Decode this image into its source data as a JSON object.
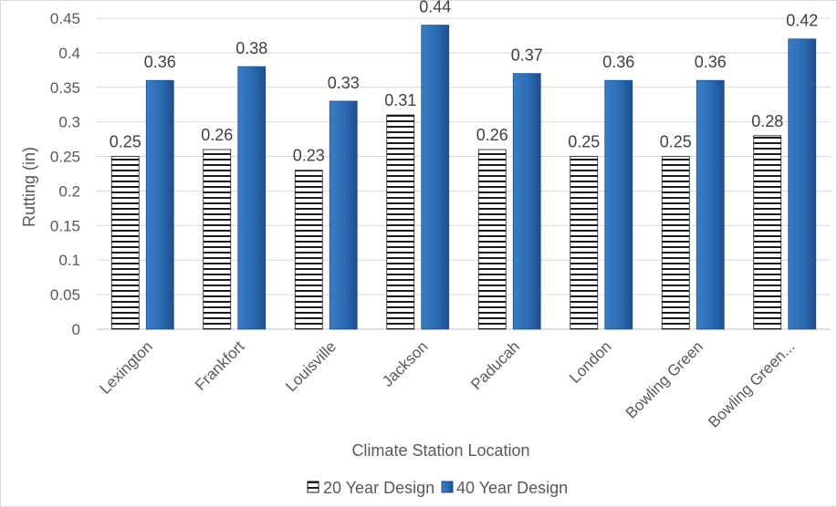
{
  "chart_data": {
    "type": "bar",
    "title": "",
    "xlabel": "Climate Station Location",
    "ylabel": "Rutting (in)",
    "ylim": [
      0,
      0.45
    ],
    "y_ticks": [
      "0",
      "0.05",
      "0.1",
      "0.15",
      "0.2",
      "0.25",
      "0.3",
      "0.35",
      "0.4",
      "0.45"
    ],
    "categories": [
      "Lexington",
      "Frankfort",
      "Louisville",
      "Jackson",
      "Paducah",
      "London",
      "Bowling Green",
      "Bowling Green..."
    ],
    "series": [
      {
        "name": "20 Year Design",
        "values": [
          0.25,
          0.26,
          0.23,
          0.31,
          0.26,
          0.25,
          0.25,
          0.28
        ],
        "labels": [
          "0.25",
          "0.26",
          "0.23",
          "0.31",
          "0.26",
          "0.25",
          "0.25",
          "0.28"
        ],
        "color": "#ffffff",
        "pattern": "horizontal-stripes"
      },
      {
        "name": "40 Year Design",
        "values": [
          0.36,
          0.38,
          0.33,
          0.44,
          0.37,
          0.36,
          0.36,
          0.42
        ],
        "labels": [
          "0.36",
          "0.38",
          "0.33",
          "0.44",
          "0.37",
          "0.36",
          "0.36",
          "0.42"
        ],
        "color": "#2e6fb7"
      }
    ],
    "grid": true,
    "legend_position": "bottom"
  }
}
